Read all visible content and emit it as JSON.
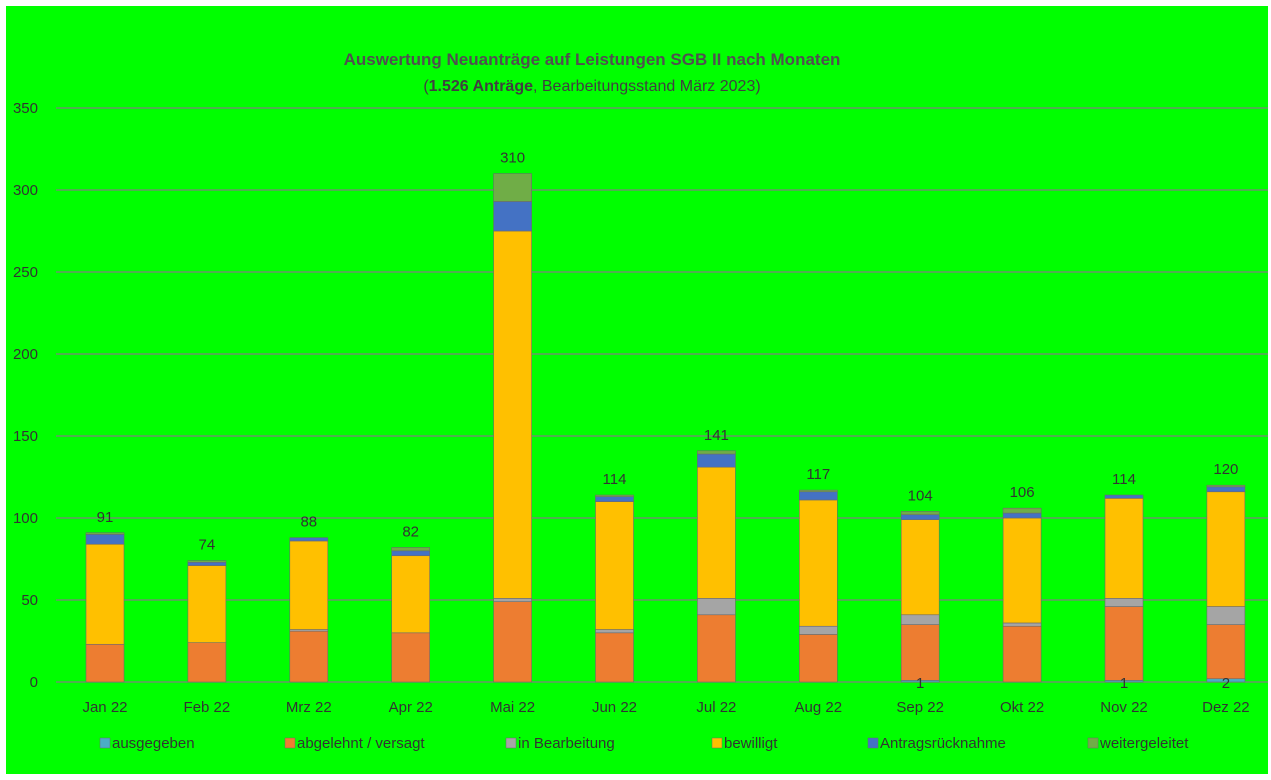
{
  "chart_data": {
    "type": "bar",
    "stacked": true,
    "title": "Auswertung Neuanträge auf Leistungen SGB II nach Monaten",
    "subtitle_parts": [
      {
        "text": "(",
        "bold": false
      },
      {
        "text": "1.526 Anträge",
        "bold": true
      },
      {
        "text": ", Bearbeitungsstand März 2023)",
        "bold": false
      }
    ],
    "categories": [
      "Jan 22",
      "Feb 22",
      "Mrz 22",
      "Apr 22",
      "Mai 22",
      "Jun 22",
      "Jul 22",
      "Aug 22",
      "Sep 22",
      "Okt 22",
      "Nov 22",
      "Dez 22"
    ],
    "series": [
      {
        "name": "ausgegeben",
        "color": "#4bacc6",
        "values": [
          0,
          0,
          0,
          0,
          0,
          0,
          0,
          0,
          1,
          0,
          1,
          2
        ]
      },
      {
        "name": "abgelehnt / versagt",
        "color": "#ed7d31",
        "values": [
          23,
          24,
          31,
          30,
          49,
          30,
          41,
          29,
          34,
          34,
          45,
          33
        ]
      },
      {
        "name": "in Bearbeitung",
        "color": "#a5a5a5",
        "values": [
          0,
          0,
          1,
          0,
          2,
          2,
          10,
          5,
          6,
          2,
          5,
          11
        ]
      },
      {
        "name": "bewilligt",
        "color": "#ffc000",
        "values": [
          61,
          47,
          54,
          47,
          224,
          78,
          80,
          77,
          58,
          64,
          61,
          70
        ]
      },
      {
        "name": "Antragsrücknahme",
        "color": "#4472c4",
        "values": [
          6,
          2,
          2,
          3,
          18,
          3,
          8,
          5,
          3,
          3,
          2,
          3
        ]
      },
      {
        "name": "weitergeleitet",
        "color": "#70ad47",
        "values": [
          1,
          1,
          0,
          2,
          17,
          1,
          2,
          1,
          2,
          3,
          0,
          1
        ]
      }
    ],
    "totals": [
      "91",
      "74",
      "88",
      "82",
      "310",
      "114",
      "141",
      "117",
      "104",
      "106",
      "114",
      "120"
    ],
    "segment_labels": [
      {
        "category_index": 8,
        "series_index": 0,
        "text": "1"
      },
      {
        "category_index": 10,
        "series_index": 0,
        "text": "1"
      },
      {
        "category_index": 11,
        "series_index": 0,
        "text": "2"
      }
    ],
    "yticks": [
      "0",
      "50",
      "100",
      "150",
      "200",
      "250",
      "300",
      "350"
    ],
    "ylim": [
      0,
      350
    ],
    "grid": true,
    "legend_position": "bottom",
    "background_color": "#00ff00",
    "gridline_color": "#7f7f7f"
  }
}
